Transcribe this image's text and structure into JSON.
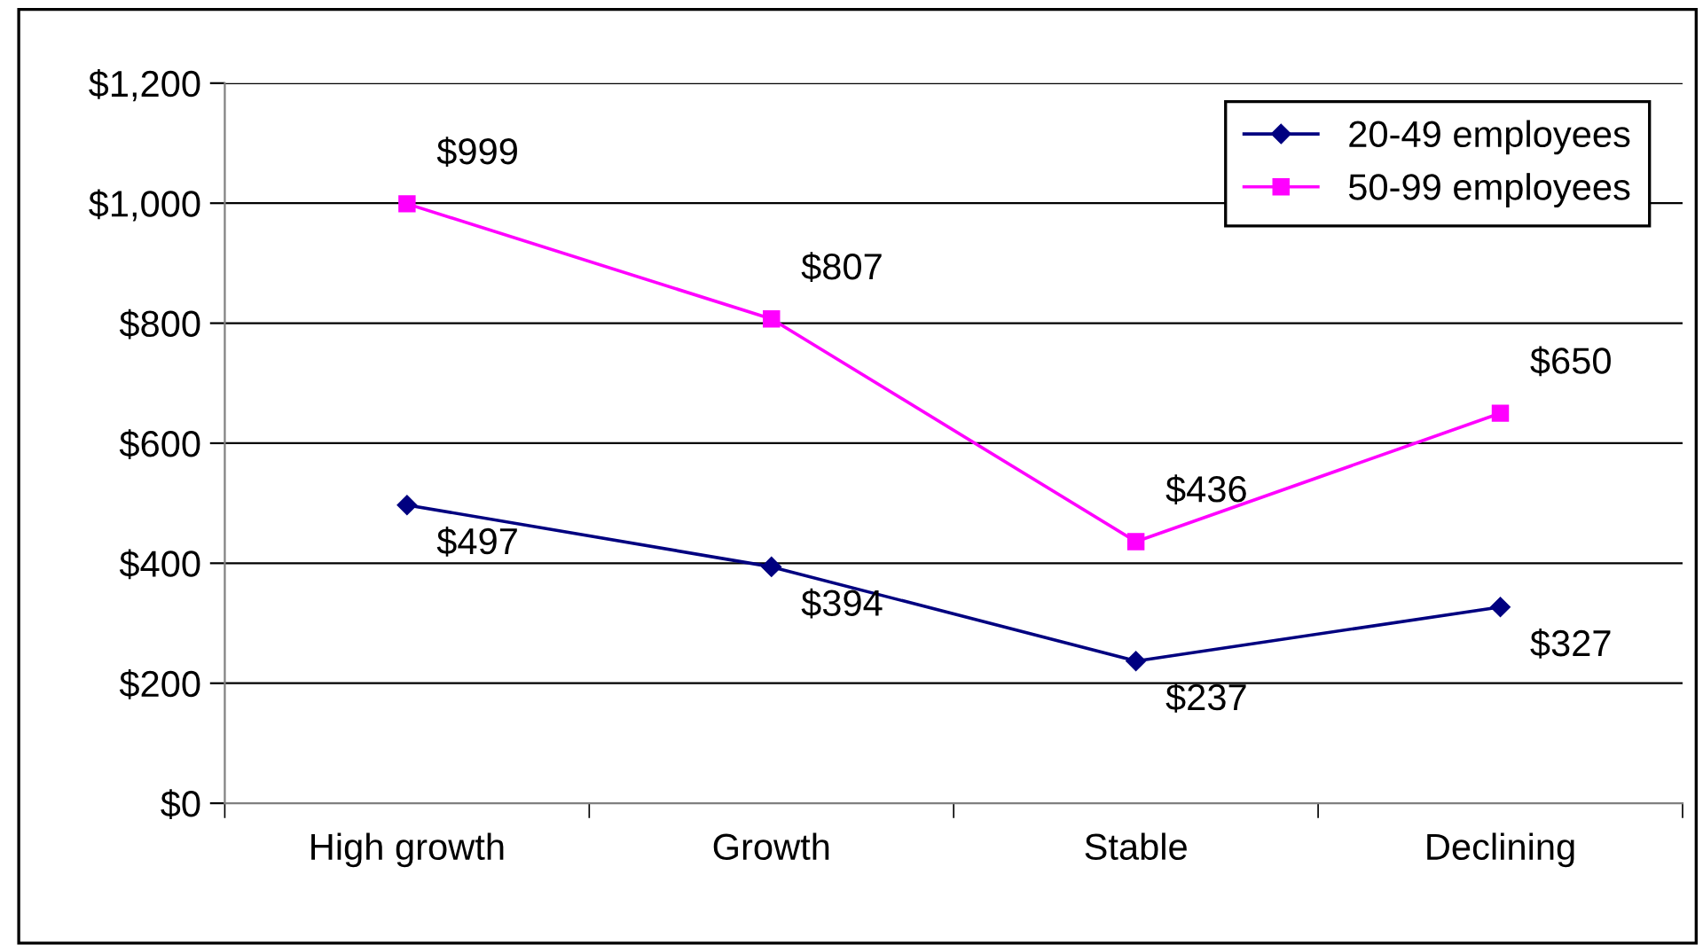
{
  "chart_data": {
    "type": "line",
    "categories": [
      "High growth",
      "Growth",
      "Stable",
      "Declining"
    ],
    "series": [
      {
        "name": "20-49 employees",
        "color": "#000080",
        "marker": "diamond",
        "values": [
          497,
          394,
          237,
          327
        ],
        "value_labels": [
          "$497",
          "$394",
          "$237",
          "$327"
        ]
      },
      {
        "name": "50-99 employees",
        "color": "#ff00ff",
        "marker": "square",
        "values": [
          999,
          807,
          436,
          650
        ],
        "value_labels": [
          "$999",
          "$807",
          "$436",
          "$650"
        ]
      }
    ],
    "ylim": [
      0,
      1200
    ],
    "yticks": [
      {
        "value": 0,
        "label": "$0"
      },
      {
        "value": 200,
        "label": "$200"
      },
      {
        "value": 400,
        "label": "$400"
      },
      {
        "value": 600,
        "label": "$600"
      },
      {
        "value": 800,
        "label": "$800"
      },
      {
        "value": 1000,
        "label": "$1,000"
      },
      {
        "value": 1200,
        "label": "$1,200"
      }
    ],
    "grid": "y",
    "legend": "top right",
    "line_style": "solid"
  }
}
